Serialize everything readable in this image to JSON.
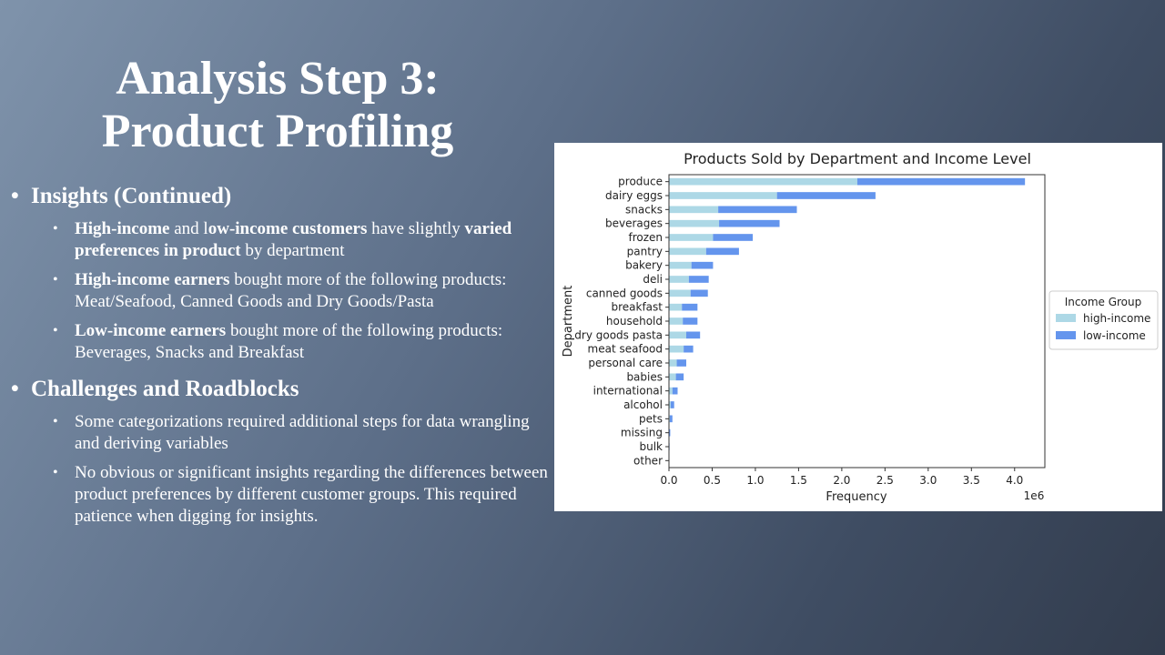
{
  "slide": {
    "title_line1": "Analysis Step 3:",
    "title_line2": "Product Profiling"
  },
  "sections": [
    {
      "heading": "Insights (Continued)",
      "items": [
        [
          {
            "t": "High-income",
            "b": true
          },
          {
            "t": " and l",
            "b": false
          },
          {
            "t": "ow-income customers",
            "b": true
          },
          {
            "t": " have slightly ",
            "b": false
          },
          {
            "t": "varied preferences in product",
            "b": true
          },
          {
            "t": " by department",
            "b": false
          }
        ],
        [
          {
            "t": "High-income earners",
            "b": true
          },
          {
            "t": " bought more of  the following products: Meat/Seafood, Canned Goods and Dry Goods/Pasta",
            "b": false
          }
        ],
        [
          {
            "t": "Low-income earners",
            "b": true
          },
          {
            "t": " bought more of  the following products: Beverages, Snacks and Breakfast",
            "b": false
          }
        ]
      ]
    },
    {
      "heading": "Challenges and Roadblocks",
      "items": [
        [
          {
            "t": "Some categorizations required additional steps for data wrangling and deriving variables",
            "b": false
          }
        ],
        [
          {
            "t": "No obvious or significant insights regarding the differences between product preferences by different customer groups. This required patience when digging for insights.",
            "b": false
          }
        ]
      ]
    }
  ],
  "chart_data": {
    "type": "bar",
    "orientation": "horizontal",
    "stacked": true,
    "title": "Products Sold by Department and Income Level",
    "xlabel": "Frequency",
    "ylabel": "Department",
    "x_multiplier": "1e6",
    "xlim": [
      0,
      4.35
    ],
    "xticks": [
      "0.0",
      "0.5",
      "1.0",
      "1.5",
      "2.0",
      "2.5",
      "3.0",
      "3.5",
      "4.0"
    ],
    "legend_title": "Income Group",
    "legend_position": "right",
    "grid": false,
    "categories": [
      "produce",
      "dairy eggs",
      "snacks",
      "beverages",
      "frozen",
      "pantry",
      "bakery",
      "deli",
      "canned goods",
      "breakfast",
      "household",
      "dry goods pasta",
      "meat seafood",
      "personal care",
      "babies",
      "international",
      "alcohol",
      "pets",
      "missing",
      "bulk",
      "other"
    ],
    "series": [
      {
        "name": "high-income",
        "color": "#add8e6",
        "values": [
          2.18,
          1.25,
          0.57,
          0.58,
          0.51,
          0.43,
          0.26,
          0.23,
          0.25,
          0.15,
          0.16,
          0.2,
          0.17,
          0.09,
          0.08,
          0.04,
          0.02,
          0.01,
          0.005,
          0.002,
          0.001
        ]
      },
      {
        "name": "low-income",
        "color": "#6495ed",
        "values": [
          1.94,
          1.14,
          0.91,
          0.7,
          0.46,
          0.38,
          0.25,
          0.23,
          0.2,
          0.18,
          0.17,
          0.16,
          0.11,
          0.11,
          0.09,
          0.06,
          0.04,
          0.03,
          0.01,
          0.005,
          0.002
        ]
      }
    ]
  }
}
